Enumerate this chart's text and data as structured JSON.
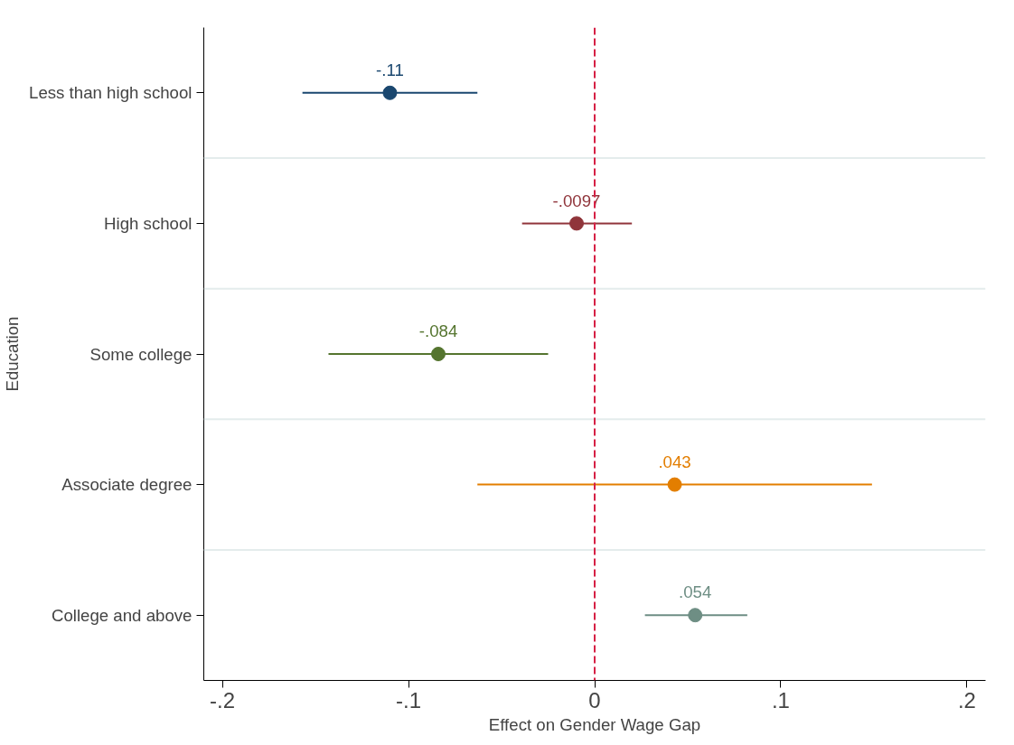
{
  "chart_data": {
    "type": "scatter",
    "orientation": "horizontal",
    "xlabel": "Effect on Gender Wage Gap",
    "ylabel": "Education",
    "categories": [
      "Less than high school",
      "High school",
      "Some college",
      "Associate degree",
      "College and above"
    ],
    "values": [
      -0.11,
      -0.0097,
      -0.084,
      0.043,
      0.054
    ],
    "errors": [
      [
        -0.157,
        -0.063
      ],
      [
        -0.039,
        0.02
      ],
      [
        -0.143,
        -0.025
      ],
      [
        -0.063,
        0.149
      ],
      [
        0.027,
        0.082
      ]
    ],
    "colors": [
      "#1a476f",
      "#90353b",
      "#55752f",
      "#e37e00",
      "#6e8e84"
    ],
    "value_labels": [
      "-.11",
      "-.0097",
      "-.084",
      ".043",
      ".054"
    ],
    "xlim": [
      -0.21,
      0.21
    ],
    "xticks": [
      {
        "value": -0.2,
        "label": "-.2"
      },
      {
        "value": -0.1,
        "label": "-.1"
      },
      {
        "value": 0,
        "label": "0"
      },
      {
        "value": 0.1,
        "label": ".1"
      },
      {
        "value": 0.2,
        "label": ".2"
      }
    ],
    "ref_lines": [
      {
        "axis": "x",
        "value": 0,
        "color": "#d62045",
        "line_style": "dashed"
      }
    ],
    "grid": "y",
    "marker": "circle"
  }
}
